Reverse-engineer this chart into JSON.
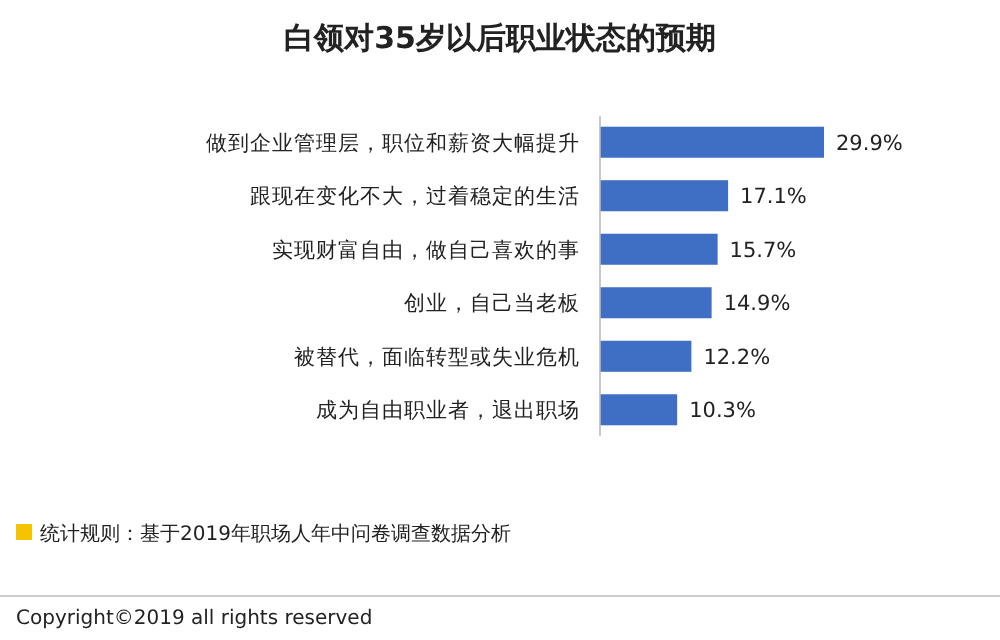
{
  "chart_data": {
    "type": "bar",
    "orientation": "horizontal",
    "title": "白领对35岁以后职业状态的预期",
    "categories": [
      "做到企业管理层，职位和薪资大幅提升",
      "跟现在变化不大，过着稳定的生活",
      "实现财富自由，做自己喜欢的事",
      "创业，自己当老板",
      "被替代，面临转型或失业危机",
      "成为自由职业者，退出职场"
    ],
    "values": [
      29.9,
      17.1,
      15.7,
      14.9,
      12.2,
      10.3
    ],
    "value_labels": [
      "29.9%",
      "17.1%",
      "15.7%",
      "14.9%",
      "12.2%",
      "10.3%"
    ],
    "color": "#3f6fc5",
    "annotations": [
      "统计规则：基于2019年职场人年中问卷调查数据分析",
      "Copyright©2019 all rights reserved"
    ]
  }
}
